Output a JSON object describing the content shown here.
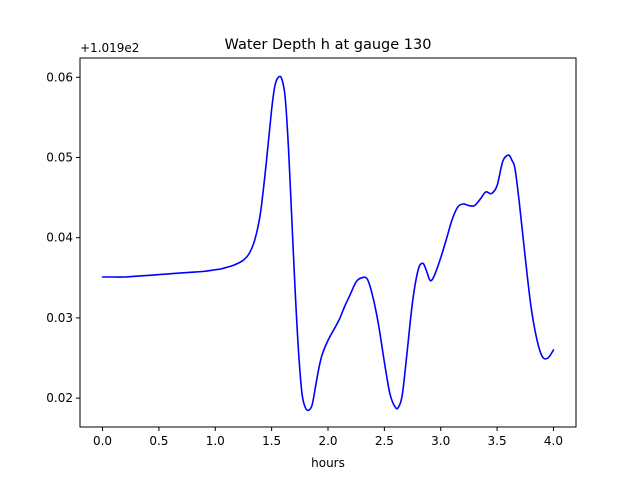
{
  "chart_data": {
    "type": "line",
    "title": "Water Depth h at gauge 130",
    "xlabel": "hours",
    "ylabel": "",
    "offset_text": "+1.019e2",
    "xlim": [
      -0.2,
      4.2
    ],
    "ylim": [
      0.0164,
      0.0624
    ],
    "x_ticks": [
      0.0,
      0.5,
      1.0,
      1.5,
      2.0,
      2.5,
      3.0,
      3.5,
      4.0
    ],
    "x_tick_labels": [
      "0.0",
      "0.5",
      "1.0",
      "1.5",
      "2.0",
      "2.5",
      "3.0",
      "3.5",
      "4.0"
    ],
    "y_ticks": [
      0.02,
      0.03,
      0.04,
      0.05,
      0.06
    ],
    "y_tick_labels": [
      "0.02",
      "0.03",
      "0.04",
      "0.05",
      "0.06"
    ],
    "grid": false,
    "series": [
      {
        "color": "#0000ff",
        "x": [
          0.0,
          0.1,
          0.2,
          0.3,
          0.4,
          0.5,
          0.6,
          0.7,
          0.8,
          0.9,
          1.0,
          1.05,
          1.1,
          1.15,
          1.2,
          1.25,
          1.3,
          1.35,
          1.4,
          1.45,
          1.5,
          1.53,
          1.56,
          1.59,
          1.62,
          1.65,
          1.68,
          1.71,
          1.74,
          1.77,
          1.8,
          1.83,
          1.86,
          1.89,
          1.92,
          1.95,
          2.0,
          2.05,
          2.1,
          2.15,
          2.2,
          2.25,
          2.3,
          2.35,
          2.4,
          2.45,
          2.5,
          2.55,
          2.6,
          2.63,
          2.66,
          2.7,
          2.75,
          2.8,
          2.84,
          2.87,
          2.9,
          2.92,
          2.95,
          3.0,
          3.05,
          3.1,
          3.15,
          3.2,
          3.25,
          3.3,
          3.35,
          3.4,
          3.45,
          3.5,
          3.55,
          3.6,
          3.63,
          3.66,
          3.7,
          3.75,
          3.8,
          3.85,
          3.9,
          3.95,
          4.0
        ],
        "y": [
          0.0351,
          0.0351,
          0.0351,
          0.0352,
          0.0353,
          0.0354,
          0.0355,
          0.0356,
          0.0357,
          0.0358,
          0.036,
          0.0361,
          0.0363,
          0.0365,
          0.0368,
          0.0372,
          0.038,
          0.0397,
          0.043,
          0.049,
          0.056,
          0.059,
          0.06,
          0.0598,
          0.0575,
          0.051,
          0.042,
          0.033,
          0.0255,
          0.0205,
          0.0188,
          0.0185,
          0.0192,
          0.0215,
          0.0238,
          0.0255,
          0.0272,
          0.0285,
          0.0298,
          0.0315,
          0.033,
          0.0345,
          0.035,
          0.0348,
          0.0325,
          0.029,
          0.0245,
          0.0205,
          0.0188,
          0.019,
          0.0205,
          0.0255,
          0.032,
          0.036,
          0.0368,
          0.036,
          0.0348,
          0.0347,
          0.0355,
          0.0375,
          0.0398,
          0.0422,
          0.0438,
          0.0442,
          0.044,
          0.044,
          0.0448,
          0.0457,
          0.0455,
          0.0465,
          0.0495,
          0.0503,
          0.0497,
          0.0485,
          0.044,
          0.0375,
          0.0315,
          0.0275,
          0.0252,
          0.025,
          0.026
        ]
      }
    ]
  }
}
